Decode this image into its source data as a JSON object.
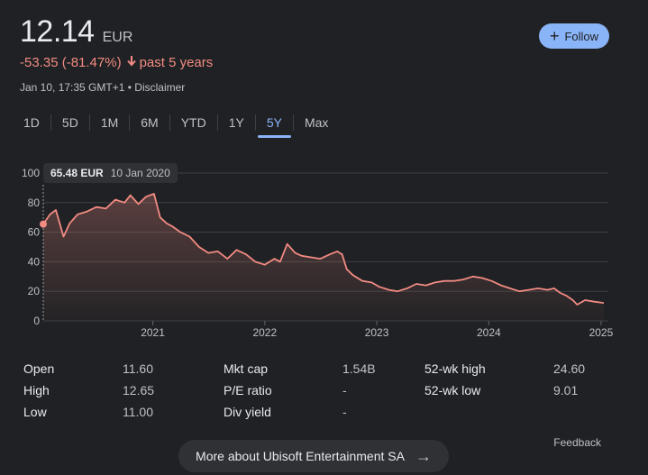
{
  "quote": {
    "price": "12.14",
    "currency": "EUR",
    "change": "-53.35 (-81.47%)",
    "arrow_icon": "arrow-down-icon",
    "period": "past 5 years",
    "timestamp": "Jan 10, 17:35 GMT+1",
    "disclaimer": "Disclaimer"
  },
  "follow": {
    "label": "Follow",
    "icon": "plus-icon"
  },
  "tabs": [
    {
      "label": "1D"
    },
    {
      "label": "5D"
    },
    {
      "label": "1M"
    },
    {
      "label": "6M"
    },
    {
      "label": "YTD"
    },
    {
      "label": "1Y"
    },
    {
      "label": "5Y",
      "active": true
    },
    {
      "label": "Max"
    }
  ],
  "tooltip": {
    "value": "65.48 EUR",
    "date": "10 Jan 2020"
  },
  "chart_data": {
    "type": "line",
    "x_start": "2020-01-10",
    "x_end": "2025-01-10",
    "xticks": [
      "2021",
      "2022",
      "2023",
      "2024",
      "2025"
    ],
    "ylim": [
      0,
      100
    ],
    "yticks": [
      "0",
      "20",
      "40",
      "60",
      "80",
      "100"
    ],
    "line_color": "#f28b82",
    "grid": true,
    "series": [
      {
        "x": [
          "2020-01-10",
          "2020-02-01",
          "2020-02-20",
          "2020-03-16",
          "2020-04-05",
          "2020-05-01",
          "2020-06-01",
          "2020-07-01",
          "2020-08-01",
          "2020-09-01",
          "2020-10-01",
          "2020-10-20",
          "2020-11-15",
          "2020-12-10",
          "2021-01-05",
          "2021-01-25",
          "2021-02-15",
          "2021-03-05",
          "2021-04-01",
          "2021-05-01",
          "2021-06-01",
          "2021-07-01",
          "2021-08-01",
          "2021-09-01",
          "2021-10-01",
          "2021-11-01",
          "2021-12-01",
          "2022-01-01",
          "2022-02-01",
          "2022-02-20",
          "2022-03-15",
          "2022-04-10",
          "2022-05-01",
          "2022-06-01",
          "2022-07-01",
          "2022-08-01",
          "2022-08-25",
          "2022-09-10",
          "2022-09-25",
          "2022-10-15",
          "2022-11-15",
          "2022-12-15",
          "2023-01-10",
          "2023-02-10",
          "2023-03-10",
          "2023-04-10",
          "2023-05-10",
          "2023-06-10",
          "2023-07-10",
          "2023-08-10",
          "2023-09-10",
          "2023-10-10",
          "2023-11-10",
          "2023-12-10",
          "2024-01-10",
          "2024-02-10",
          "2024-03-10",
          "2024-04-10",
          "2024-05-10",
          "2024-06-10",
          "2024-07-10",
          "2024-08-01",
          "2024-08-20",
          "2024-09-10",
          "2024-10-01",
          "2024-10-15",
          "2024-11-10",
          "2024-12-10",
          "2025-01-10"
        ],
        "values": [
          65.48,
          72,
          75,
          57,
          66,
          72,
          74,
          77,
          76,
          82,
          80,
          85,
          79,
          84,
          86,
          70,
          66,
          64,
          60,
          57,
          50,
          46,
          47,
          42,
          48,
          45,
          40,
          38,
          42,
          40,
          52,
          46,
          44,
          43,
          42,
          45,
          47,
          45,
          35,
          31,
          27,
          26,
          23,
          21,
          20,
          22,
          25,
          24,
          26,
          27,
          27,
          28,
          30,
          29,
          27,
          24,
          22,
          20,
          21,
          22,
          21,
          22,
          19,
          17,
          14,
          11,
          14,
          13,
          12.14
        ]
      }
    ]
  },
  "stats": [
    {
      "label": "Open",
      "value": "11.60"
    },
    {
      "label": "High",
      "value": "12.65"
    },
    {
      "label": "Low",
      "value": "11.00"
    },
    {
      "label": "Mkt cap",
      "value": "1.54B"
    },
    {
      "label": "P/E ratio",
      "value": "-"
    },
    {
      "label": "Div yield",
      "value": "-"
    },
    {
      "label": "52-wk high",
      "value": "24.60"
    },
    {
      "label": "52-wk low",
      "value": "9.01"
    }
  ],
  "feedback": "Feedback",
  "more_button": {
    "label": "More about Ubisoft Entertainment SA",
    "icon": "arrow-right-icon"
  }
}
